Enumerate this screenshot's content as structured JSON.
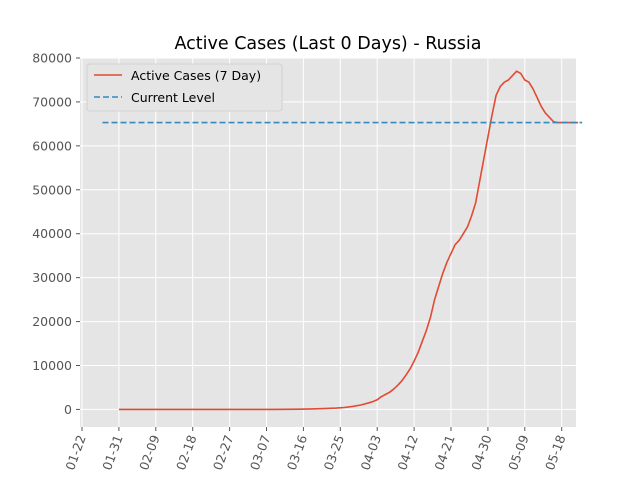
{
  "chart_data": {
    "type": "line",
    "title": "Active Cases (Last 0 Days) - Russia",
    "xlabel": "",
    "ylabel": "",
    "x_start": "2020-01-22",
    "x_ticks": [
      "01-22",
      "01-31",
      "02-09",
      "02-18",
      "02-27",
      "03-07",
      "03-16",
      "03-25",
      "04-03",
      "04-12",
      "04-21",
      "04-30",
      "05-09",
      "05-18"
    ],
    "ylim": [
      -4000,
      80000
    ],
    "y_ticks": [
      0,
      10000,
      20000,
      30000,
      40000,
      50000,
      60000,
      70000,
      80000
    ],
    "grid": true,
    "legend_position": "top-left",
    "series": [
      {
        "name": "Active Cases (7 Day)",
        "color": "#E24A33",
        "style": "solid",
        "x": [
          "2020-01-31",
          "2020-02-03",
          "2020-02-08",
          "2020-02-13",
          "2020-02-18",
          "2020-02-23",
          "2020-02-28",
          "2020-03-04",
          "2020-03-08",
          "2020-03-12",
          "2020-03-15",
          "2020-03-18",
          "2020-03-21",
          "2020-03-24",
          "2020-03-26",
          "2020-03-28",
          "2020-03-30",
          "2020-04-01",
          "2020-04-02",
          "2020-04-03",
          "2020-04-04",
          "2020-04-05",
          "2020-04-06",
          "2020-04-07",
          "2020-04-08",
          "2020-04-09",
          "2020-04-10",
          "2020-04-11",
          "2020-04-12",
          "2020-04-13",
          "2020-04-14",
          "2020-04-15",
          "2020-04-16",
          "2020-04-17",
          "2020-04-18",
          "2020-04-19",
          "2020-04-20",
          "2020-04-21",
          "2020-04-22",
          "2020-04-23",
          "2020-04-24",
          "2020-04-25",
          "2020-04-26",
          "2020-04-27",
          "2020-04-28",
          "2020-04-29",
          "2020-04-30",
          "2020-05-01",
          "2020-05-02",
          "2020-05-03",
          "2020-05-04",
          "2020-05-05",
          "2020-05-06",
          "2020-05-07",
          "2020-05-08",
          "2020-05-09",
          "2020-05-10",
          "2020-05-11",
          "2020-05-12",
          "2020-05-13",
          "2020-05-14",
          "2020-05-15",
          "2020-05-16",
          "2020-05-17",
          "2020-05-18",
          "2020-05-19",
          "2020-05-20",
          "2020-05-21",
          "2020-05-22"
        ],
        "values": [
          2,
          2,
          2,
          2,
          2,
          3,
          4,
          8,
          15,
          30,
          60,
          120,
          200,
          300,
          450,
          700,
          1000,
          1500,
          1800,
          2200,
          2900,
          3400,
          3900,
          4600,
          5500,
          6500,
          7800,
          9200,
          11000,
          13000,
          15500,
          18000,
          21000,
          25000,
          28000,
          31000,
          33500,
          35500,
          37500,
          38500,
          40000,
          41500,
          44000,
          47000,
          52000,
          57000,
          62000,
          67000,
          71500,
          73500,
          74500,
          75000,
          76000,
          77000,
          76500,
          75000,
          74500,
          73000,
          71000,
          69000,
          67500,
          66500,
          65500,
          65300,
          65300,
          65300,
          65300,
          65300,
          65300
        ],
        "_note": ""
      },
      {
        "name": "Current Level",
        "color": "#348ABD",
        "style": "dashed",
        "x": [
          "2020-01-27",
          "2020-05-23"
        ],
        "values": [
          65300,
          65300
        ]
      }
    ]
  }
}
